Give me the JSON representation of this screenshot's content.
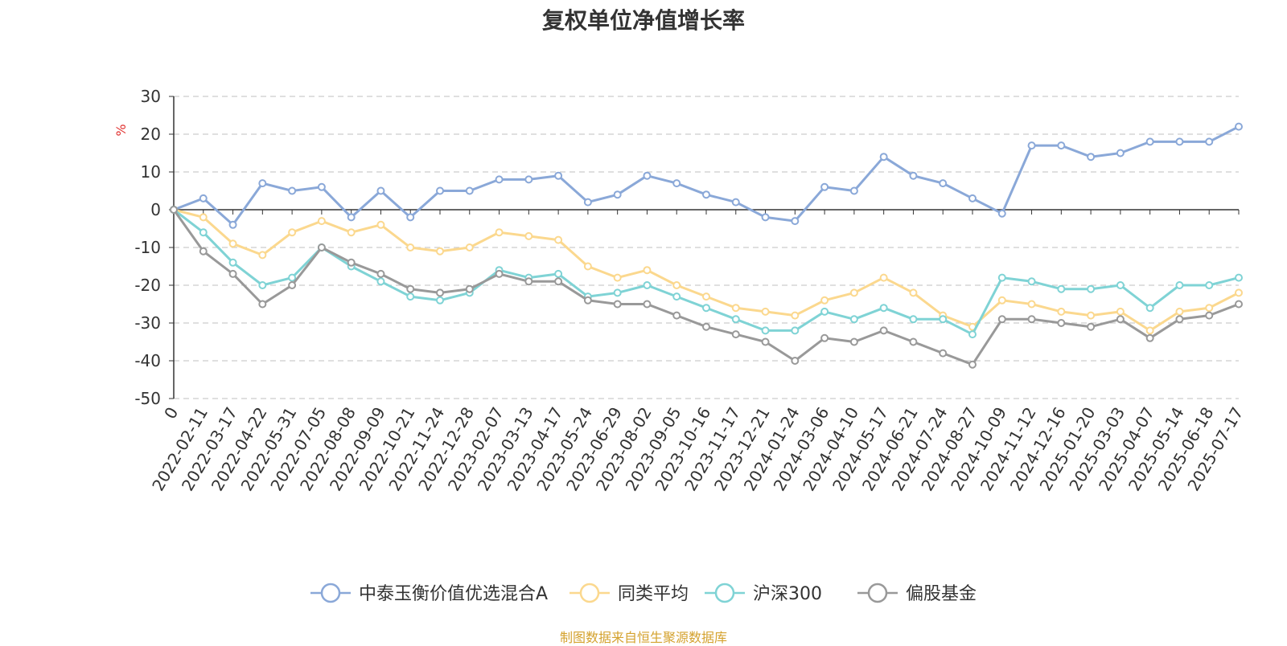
{
  "source": "制图数据来自恒生聚源数据库",
  "chart_data": {
    "type": "line",
    "title": "复权单位净值增长率",
    "ylabel": "%",
    "ylim": [
      -50,
      30
    ],
    "yticks": [
      30,
      20,
      10,
      0,
      -10,
      -20,
      -30,
      -40,
      -50
    ],
    "grid": true,
    "legend_position": "bottom",
    "x": [
      "0",
      "2022-02-11",
      "2022-03-17",
      "2022-04-22",
      "2022-05-31",
      "2022-07-05",
      "2022-08-08",
      "2022-09-09",
      "2022-10-21",
      "2022-11-24",
      "2022-12-28",
      "2023-02-07",
      "2023-03-13",
      "2023-04-17",
      "2023-05-24",
      "2023-06-29",
      "2023-08-02",
      "2023-09-05",
      "2023-10-16",
      "2023-11-17",
      "2023-12-21",
      "2024-01-24",
      "2024-03-06",
      "2024-04-10",
      "2024-05-17",
      "2024-06-21",
      "2024-07-24",
      "2024-08-27",
      "2024-10-09",
      "2024-11-12",
      "2024-12-16",
      "2025-01-20",
      "2025-03-03",
      "2025-04-07",
      "2025-05-14",
      "2025-06-18",
      "2025-07-17"
    ],
    "series": [
      {
        "name": "中泰玉衡价值优选混合A",
        "color": "#8aa8d8",
        "values": [
          0,
          3,
          -4,
          7,
          5,
          6,
          -2,
          5,
          -2,
          5,
          5,
          8,
          8,
          9,
          2,
          4,
          9,
          7,
          4,
          2,
          -2,
          -3,
          6,
          5,
          14,
          9,
          7,
          3,
          -1,
          17,
          17,
          14,
          15,
          18,
          18,
          18,
          22
        ]
      },
      {
        "name": "同类平均",
        "color": "#fbd88e",
        "values": [
          0,
          -2,
          -9,
          -12,
          -6,
          -3,
          -6,
          -4,
          -10,
          -11,
          -10,
          -6,
          -7,
          -8,
          -15,
          -18,
          -16,
          -20,
          -23,
          -26,
          -27,
          -28,
          -24,
          -22,
          -18,
          -22,
          -28,
          -31,
          -24,
          -25,
          -27,
          -28,
          -27,
          -32,
          -27,
          -26,
          -22
        ]
      },
      {
        "name": "沪深300",
        "color": "#7fd3d5",
        "values": [
          0,
          -6,
          -14,
          -20,
          -18,
          -10,
          -15,
          -19,
          -23,
          -24,
          -22,
          -16,
          -18,
          -17,
          -23,
          -22,
          -20,
          -23,
          -26,
          -29,
          -32,
          -32,
          -27,
          -29,
          -26,
          -29,
          -29,
          -33,
          -18,
          -19,
          -21,
          -21,
          -20,
          -26,
          -20,
          -20,
          -18
        ]
      },
      {
        "name": "偏股基金",
        "color": "#999999",
        "values": [
          0,
          -11,
          -17,
          -25,
          -20,
          -10,
          -14,
          -17,
          -21,
          -22,
          -21,
          -17,
          -19,
          -19,
          -24,
          -25,
          -25,
          -28,
          -31,
          -33,
          -35,
          -40,
          -34,
          -35,
          -32,
          -35,
          -38,
          -41,
          -29,
          -29,
          -30,
          -31,
          -29,
          -34,
          -29,
          -28,
          -25
        ]
      }
    ]
  }
}
